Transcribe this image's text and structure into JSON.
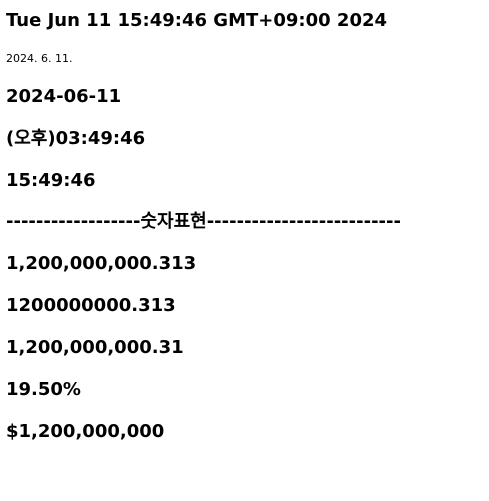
{
  "lines": {
    "full_date": "Tue Jun 11 15:49:46 GMT+09:00 2024",
    "locale_date": "2024. 6. 11.",
    "iso_date": "2024-06-11",
    "ampm_time": "(오후)03:49:46",
    "time_24h": "15:49:46",
    "separator": "------------------숫자표현--------------------------",
    "number_grouped": "1,200,000,000.313",
    "number_plain": "1200000000.313",
    "number_two_decimals": "1,200,000,000.31",
    "percent": "19.50%",
    "currency": "$1,200,000,000"
  }
}
